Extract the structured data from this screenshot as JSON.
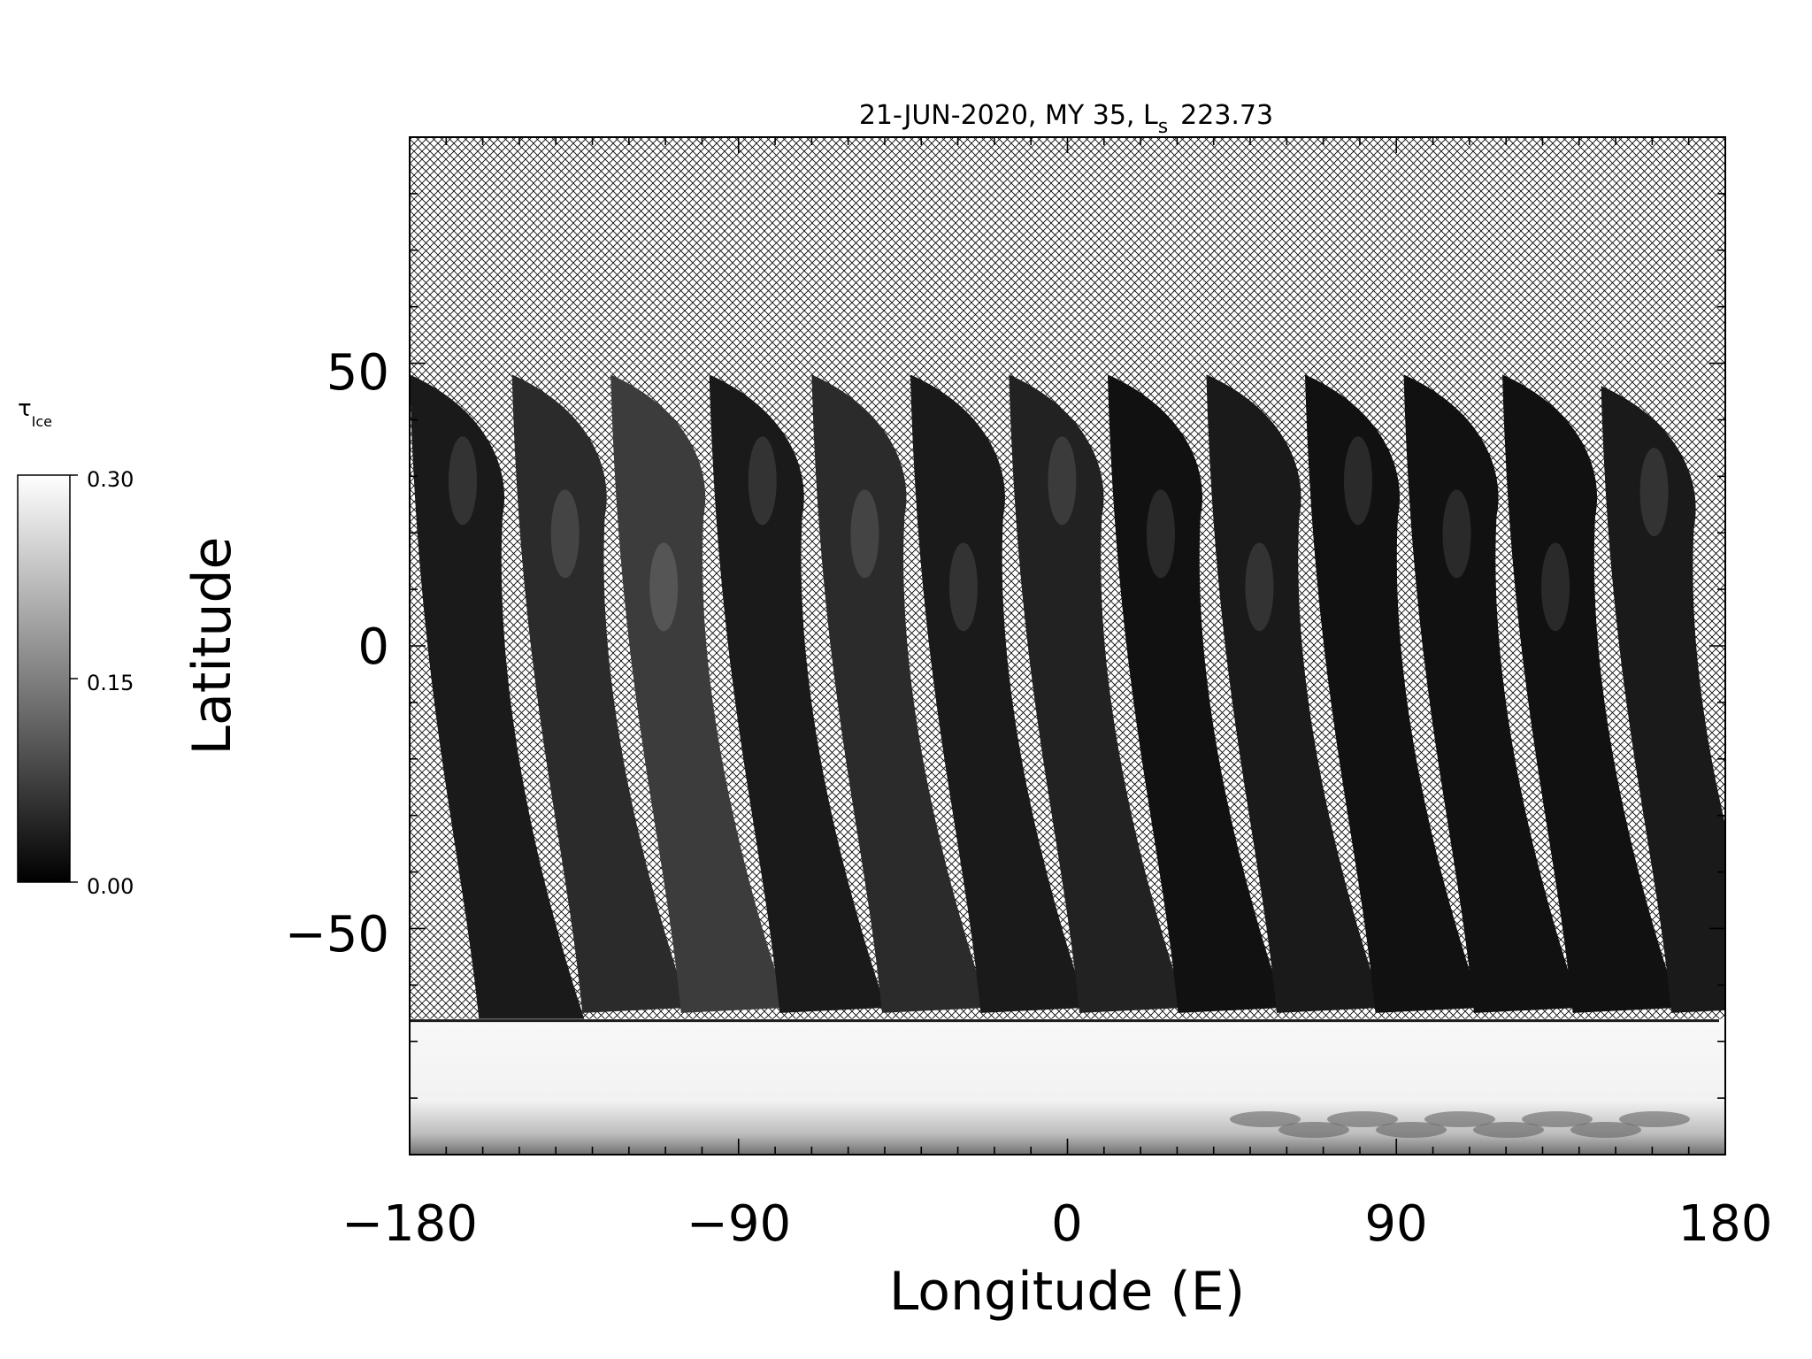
{
  "chart_data": {
    "type": "heatmap",
    "title": "21-JUN-2020, MY 35,  L",
    "title_subscript": "s",
    "title_value": "223.73",
    "xlabel": "Longitude (E)",
    "ylabel": "Latitude",
    "xlim": [
      -180,
      180
    ],
    "ylim": [
      -90,
      90
    ],
    "x_ticks": [
      -180,
      -90,
      0,
      90,
      180
    ],
    "x_tick_labels": [
      "−180",
      "−90",
      "0",
      "90",
      "180"
    ],
    "y_ticks": [
      -50,
      0,
      50
    ],
    "y_tick_labels": [
      "−50",
      "0",
      "50"
    ],
    "colorbar": {
      "label": "τ",
      "label_subscript": "Ice",
      "min": 0.0,
      "max": 0.3,
      "tick_values": [
        0.0,
        0.15,
        0.3
      ],
      "tick_labels": [
        "0.00",
        "0.15",
        "0.30"
      ],
      "colormap": "grayscale (black = 0.00, white = 0.30)"
    },
    "swaths": [
      {
        "lon_top": -180,
        "lat_top": 48,
        "lon_bottom": -168,
        "lat_bottom": -67,
        "mean_value": 0.03
      },
      {
        "lon_top": -152,
        "lat_top": 48,
        "lon_bottom": -140,
        "lat_bottom": -64,
        "mean_value": 0.05
      },
      {
        "lon_top": -125,
        "lat_top": 48,
        "lon_bottom": -113,
        "lat_bottom": -64,
        "mean_value": 0.07
      },
      {
        "lon_top": -98,
        "lat_top": 48,
        "lon_bottom": -86,
        "lat_bottom": -64,
        "mean_value": 0.03
      },
      {
        "lon_top": -70,
        "lat_top": 48,
        "lon_bottom": -58,
        "lat_bottom": -64,
        "mean_value": 0.05
      },
      {
        "lon_top": -43,
        "lat_top": 48,
        "lon_bottom": -31,
        "lat_bottom": -64,
        "mean_value": 0.03
      },
      {
        "lon_top": -16,
        "lat_top": 48,
        "lon_bottom": -4,
        "lat_bottom": -64,
        "mean_value": 0.04
      },
      {
        "lon_top": 11,
        "lat_top": 48,
        "lon_bottom": 23,
        "lat_bottom": -64,
        "mean_value": 0.02
      },
      {
        "lon_top": 38,
        "lat_top": 48,
        "lon_bottom": 50,
        "lat_bottom": -64,
        "mean_value": 0.03
      },
      {
        "lon_top": 65,
        "lat_top": 48,
        "lon_bottom": 77,
        "lat_bottom": -64,
        "mean_value": 0.02
      },
      {
        "lon_top": 92,
        "lat_top": 48,
        "lon_bottom": 104,
        "lat_bottom": -64,
        "mean_value": 0.02
      },
      {
        "lon_top": 119,
        "lat_top": 48,
        "lon_bottom": 131,
        "lat_bottom": -64,
        "mean_value": 0.02
      },
      {
        "lon_top": 146,
        "lat_top": 46,
        "lon_bottom": 158,
        "lat_bottom": -64,
        "mean_value": 0.03
      }
    ],
    "polar_cap": {
      "lat_top": -66,
      "lat_bottom": -90,
      "mean_value": 0.29
    },
    "no_data_pattern": "cross-hatch"
  }
}
